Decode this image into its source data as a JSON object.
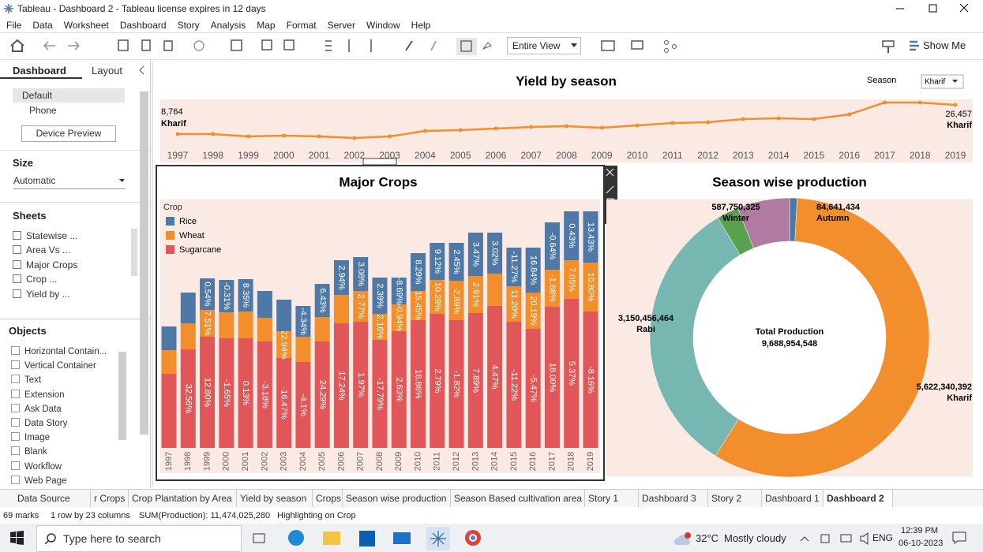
{
  "window": {
    "title": "Tableau - Dashboard 2 - Tableau license expires in 12 days"
  },
  "menu": [
    "File",
    "Data",
    "Worksheet",
    "Dashboard",
    "Story",
    "Analysis",
    "Map",
    "Format",
    "Server",
    "Window",
    "Help"
  ],
  "toolbar": {
    "view": "Entire View",
    "show_me": "Show Me"
  },
  "sidebar": {
    "tabs": [
      "Dashboard",
      "Layout"
    ],
    "devices": [
      "Default",
      "Phone"
    ],
    "device_preview": "Device Preview",
    "size_heading": "Size",
    "size": "Automatic",
    "sheets_heading": "Sheets",
    "sheets": [
      "Statewise ...",
      "Area Vs ...",
      "Major Crops",
      "Crop ...",
      "Yield by ..."
    ],
    "objects_heading": "Objects",
    "objects": [
      "Horizontal Contain...",
      "Vertical Container",
      "Text",
      "Extension",
      "Ask Data",
      "Data Story",
      "Image",
      "Blank",
      "Workflow",
      "Web Page"
    ]
  },
  "dashboard": {
    "yield": {
      "type": "line",
      "title": "Yield by season",
      "filter_label": "Season",
      "season": "Kharif",
      "color": "#f28e2b",
      "categories": [
        "1997",
        "1998",
        "1999",
        "2000",
        "2001",
        "2002",
        "2003",
        "2004",
        "2005",
        "2006",
        "2007",
        "2008",
        "2009",
        "2010",
        "2011",
        "2012",
        "2013",
        "2014",
        "2015",
        "2016",
        "2017",
        "2018",
        "2019"
      ],
      "values": [
        8764,
        8760,
        7330,
        7810,
        7330,
        6370,
        7330,
        10680,
        11150,
        12110,
        13060,
        13540,
        12590,
        14020,
        15450,
        15930,
        17840,
        18320,
        17840,
        20700,
        27900,
        27850,
        26457
      ],
      "value_labels": [
        "8,764",
        null,
        null,
        null,
        null,
        null,
        null,
        null,
        null,
        null,
        null,
        null,
        null,
        null,
        null,
        null,
        null,
        null,
        null,
        null,
        null,
        null,
        "26,457"
      ]
    },
    "crops": {
      "type": "bar",
      "stacked": true,
      "title": "Major Crops",
      "legend_title": "Crop",
      "categories": [
        "1997",
        "1998",
        "1999",
        "2000",
        "2001",
        "2002",
        "2003",
        "2004",
        "2005",
        "2006",
        "2007",
        "2008",
        "2009",
        "2010",
        "2011",
        "2012",
        "2013",
        "2014",
        "2015",
        "2016",
        "2017",
        "2018",
        "2019"
      ],
      "series": [
        {
          "name": "Rice",
          "color": "#4e79a7",
          "values": [
            30,
            39,
            40,
            41,
            41,
            34,
            40,
            39,
            42,
            44,
            43,
            46,
            34,
            48,
            47,
            48,
            55,
            52,
            49,
            57,
            60,
            62,
            65
          ],
          "pct_labels": [
            null,
            null,
            "0.54%",
            "-0.31%",
            "8.35%",
            null,
            null,
            "-4.34%",
            "6.43%",
            "2.94%",
            "3.08%",
            "2.39%",
            "-8.69%",
            "8.29%",
            "9.12%",
            "2.45%",
            "3.47%",
            "3.02%",
            "-11.27%",
            "16.84%",
            "-0.64%",
            "0.43%",
            "13.43%"
          ]
        },
        {
          "name": "Wheat",
          "color": "#f28e2b",
          "values": [
            30,
            33,
            34,
            33,
            34,
            30,
            34,
            32,
            31,
            36,
            39,
            33,
            34,
            37,
            43,
            50,
            47,
            41,
            45,
            46,
            47,
            49,
            62
          ],
          "pct_labels": [
            null,
            null,
            "7.51%",
            null,
            null,
            null,
            "22.94%",
            null,
            null,
            null,
            "2.77%",
            "2.16%",
            "-0.94%",
            "15.45%",
            "10.28%",
            "-2.89%",
            "2.91%",
            null,
            "11.20%",
            "20.19%",
            "-1.68%",
            "7.05%",
            "10.80%"
          ]
        },
        {
          "name": "Sugarcane",
          "color": "#e15759",
          "values": [
            94,
            125,
            141,
            139,
            139,
            135,
            114,
            109,
            135,
            158,
            160,
            137,
            148,
            162,
            170,
            162,
            171,
            180,
            160,
            151,
            179,
            189,
            173
          ],
          "pct_labels": [
            null,
            "32.56%",
            "12.80%",
            "-1.65%",
            "0.13%",
            "-3.18%",
            "-16.47%",
            "-4.1%",
            "24.29%",
            "17.24%",
            "1.97%",
            "-17.79%",
            "2.63%",
            "16.86%",
            "2.79%",
            "-1.82%",
            "7.89%",
            "4.47%",
            "-11.22%",
            "-5.47%",
            "18.00%",
            "5.37%",
            "-8.16%"
          ]
        }
      ]
    },
    "season": {
      "type": "pie",
      "title": "Season wise production",
      "categories": [
        "Autumn",
        "Kharif",
        "Rabi",
        null,
        "Winter"
      ],
      "values": [
        84641434,
        5622340392,
        3150456464,
        243765933,
        587750325
      ],
      "value_labels": [
        "84,641,434",
        "5,622,340,392",
        "3,150,456,464",
        null,
        "587,750,325"
      ],
      "colors": [
        "#4e79a7",
        "#f28e2b",
        "#76b7b2",
        "#59a14f",
        "#b07aa1"
      ],
      "total_label": "Total Production",
      "total": 9688954548,
      "total_value_label": "9,688,954,548"
    }
  },
  "tabs": [
    "Data Source",
    "r Crops",
    "Crop Plantation by Area",
    "Yield by season",
    "Crops",
    "Season wise production",
    "Season Based cultivation area",
    "Story 1",
    "Dashboard 3",
    "Story 2",
    "Dashboard 1",
    "Dashboard 2"
  ],
  "status": [
    "69 marks",
    "1 row by 23 columns",
    "SUM(Production): 11,474,025,280",
    "Highlighting on Crop"
  ],
  "taskbar": {
    "search": "Type here to search",
    "temperature": "32°C",
    "weather": "Mostly cloudy",
    "language": "ENG",
    "time": "12:39 PM",
    "date": "06-10-2023"
  }
}
